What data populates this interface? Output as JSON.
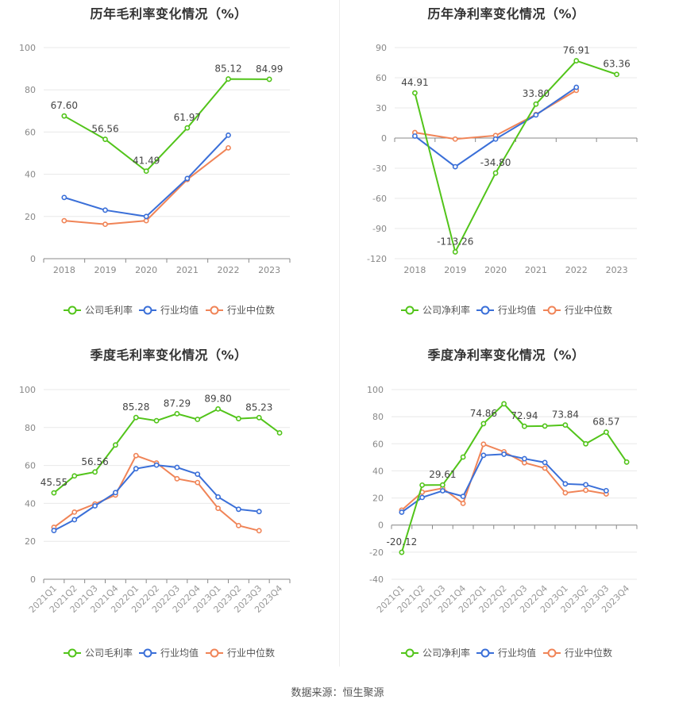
{
  "footer": "数据来源：恒生聚源",
  "colors": {
    "company": "#52c41a",
    "industry_avg": "#3a6fd8",
    "industry_median": "#f08457"
  },
  "chart_data": [
    {
      "id": "annual-gross",
      "type": "line",
      "title": "历年毛利率变化情况（%）",
      "categories": [
        "2018",
        "2019",
        "2020",
        "2021",
        "2022",
        "2023"
      ],
      "ylim": [
        0,
        100
      ],
      "yticks": [
        0,
        20,
        40,
        60,
        80,
        100
      ],
      "series": [
        {
          "name": "公司毛利率",
          "values": [
            67.6,
            56.56,
            41.49,
            61.97,
            85.12,
            84.99
          ]
        },
        {
          "name": "行业均值",
          "values": [
            29,
            23,
            20,
            38,
            58.5,
            null
          ]
        },
        {
          "name": "行业中位数",
          "values": [
            18,
            16.3,
            18,
            37.5,
            52.5,
            null
          ]
        }
      ],
      "data_labels": [
        {
          "index": 0,
          "text": "67.60"
        },
        {
          "index": 1,
          "text": "56.56"
        },
        {
          "index": 2,
          "text": "41.49"
        },
        {
          "index": 3,
          "text": "61.97"
        },
        {
          "index": 4,
          "text": "85.12"
        },
        {
          "index": 5,
          "text": "84.99"
        }
      ],
      "grid": true,
      "legend_position": "bottom"
    },
    {
      "id": "annual-net",
      "type": "line",
      "title": "历年净利率变化情况（%）",
      "categories": [
        "2018",
        "2019",
        "2020",
        "2021",
        "2022",
        "2023"
      ],
      "ylim": [
        -120,
        90
      ],
      "yticks": [
        -120,
        -90,
        -60,
        -30,
        0,
        30,
        60,
        90
      ],
      "series": [
        {
          "name": "公司净利率",
          "values": [
            44.91,
            -113.26,
            -34.8,
            33.8,
            76.91,
            63.36
          ]
        },
        {
          "name": "行业均值",
          "values": [
            2,
            -28.5,
            -1,
            23,
            50.5,
            null
          ]
        },
        {
          "name": "行业中位数",
          "values": [
            5.5,
            -1,
            2.5,
            23.5,
            47.5,
            null
          ]
        }
      ],
      "data_labels": [
        {
          "index": 0,
          "text": "44.91"
        },
        {
          "index": 1,
          "text": "-113.26"
        },
        {
          "index": 2,
          "text": "-34.80"
        },
        {
          "index": 3,
          "text": "33.80"
        },
        {
          "index": 4,
          "text": "76.91"
        },
        {
          "index": 5,
          "text": "63.36"
        }
      ],
      "grid": true,
      "legend_position": "bottom"
    },
    {
      "id": "quarterly-gross",
      "type": "line",
      "title": "季度毛利率变化情况（%）",
      "categories": [
        "2021Q1",
        "2021Q2",
        "2021Q3",
        "2021Q4",
        "2022Q1",
        "2022Q2",
        "2022Q3",
        "2022Q4",
        "2023Q1",
        "2023Q2",
        "2023Q3",
        "2023Q4"
      ],
      "ylim": [
        0,
        100
      ],
      "yticks": [
        0,
        20,
        40,
        60,
        80,
        100
      ],
      "series": [
        {
          "name": "公司毛利率",
          "values": [
            45.55,
            54.5,
            56.56,
            70.8,
            85.28,
            83.6,
            87.29,
            84.3,
            89.8,
            84.7,
            85.23,
            77.2
          ]
        },
        {
          "name": "行业均值",
          "values": [
            25.7,
            31.4,
            38.7,
            45.7,
            58.3,
            60.2,
            59.0,
            55.4,
            43.4,
            36.9,
            35.7,
            null
          ]
        },
        {
          "name": "行业中位数",
          "values": [
            27.4,
            35.4,
            39.7,
            44.4,
            65.2,
            61.3,
            53.0,
            51.0,
            37.4,
            28.3,
            25.6,
            null
          ]
        }
      ],
      "data_labels": [
        {
          "index": 0,
          "text": "45.55"
        },
        {
          "index": 2,
          "text": "56.56"
        },
        {
          "index": 4,
          "text": "85.28"
        },
        {
          "index": 6,
          "text": "87.29"
        },
        {
          "index": 8,
          "text": "89.80"
        },
        {
          "index": 10,
          "text": "85.23"
        }
      ],
      "grid": true,
      "legend_position": "bottom"
    },
    {
      "id": "quarterly-net",
      "type": "line",
      "title": "季度净利率变化情况（%）",
      "categories": [
        "2021Q1",
        "2021Q2",
        "2021Q3",
        "2021Q4",
        "2022Q1",
        "2022Q2",
        "2022Q3",
        "2022Q4",
        "2023Q1",
        "2023Q2",
        "2023Q3",
        "2023Q4"
      ],
      "ylim": [
        -40,
        100
      ],
      "yticks": [
        -40,
        -20,
        0,
        20,
        40,
        60,
        80,
        100
      ],
      "series": [
        {
          "name": "公司净利率",
          "values": [
            -20.12,
            29.5,
            29.61,
            50.2,
            74.86,
            89.5,
            72.94,
            73.1,
            73.84,
            60.0,
            68.57,
            46.5
          ]
        },
        {
          "name": "行业均值",
          "values": [
            9.5,
            20.4,
            25.3,
            21.2,
            51.5,
            52.3,
            49.0,
            46.2,
            30.4,
            29.8,
            25.4,
            null
          ]
        },
        {
          "name": "行业中位数",
          "values": [
            11.0,
            24.3,
            27.2,
            16.0,
            59.7,
            54.1,
            46.0,
            42.0,
            23.8,
            25.7,
            23.0,
            null
          ]
        }
      ],
      "data_labels": [
        {
          "index": 0,
          "text": "-20.12"
        },
        {
          "index": 2,
          "text": "29.61"
        },
        {
          "index": 4,
          "text": "74.86"
        },
        {
          "index": 6,
          "text": "72.94"
        },
        {
          "index": 8,
          "text": "73.84"
        },
        {
          "index": 10,
          "text": "68.57"
        }
      ],
      "grid": true,
      "legend_position": "bottom"
    }
  ]
}
